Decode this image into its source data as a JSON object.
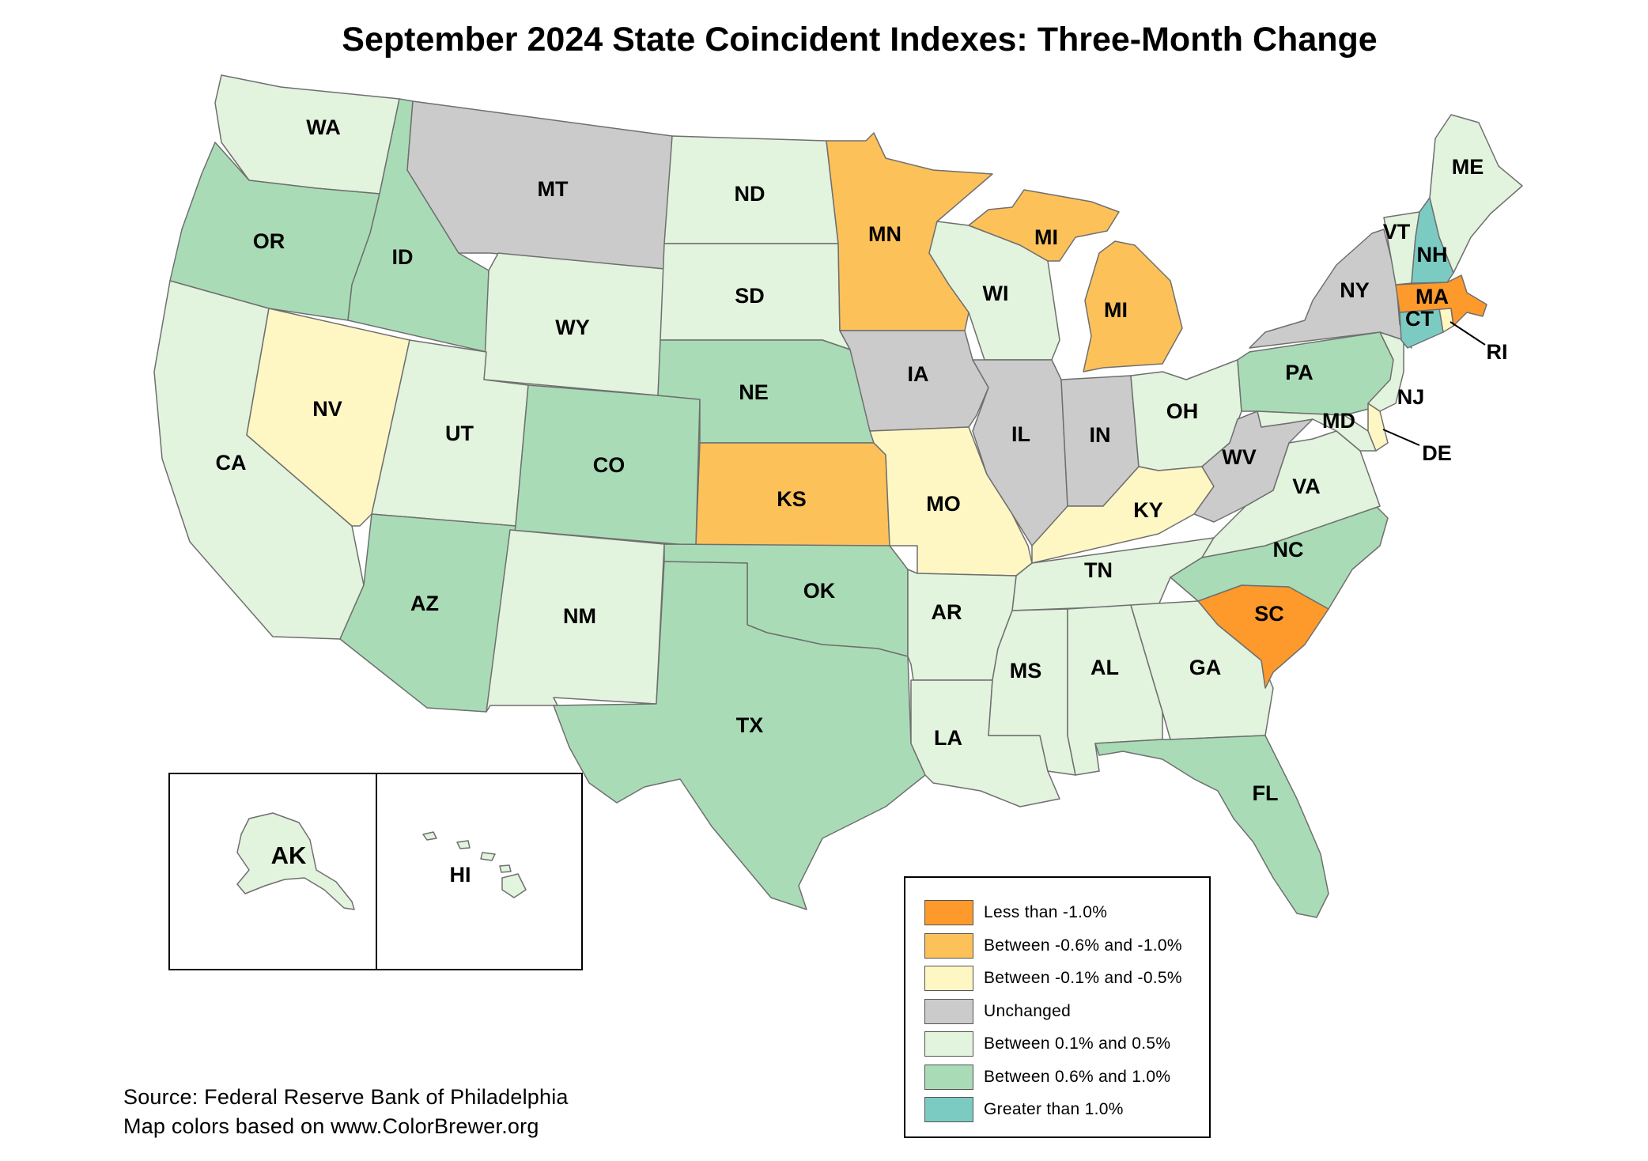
{
  "title": "September 2024 State Coincident Indexes: Three-Month Change",
  "colors": {
    "lt_neg1": "#fd9a2b",
    "neg06_neg1": "#fdc15a",
    "neg01_neg05": "#fef7c4",
    "unchanged": "#cbcbcb",
    "p01_05": "#e2f3de",
    "p06_10": "#a9dcb6",
    "gt1": "#7ccbc2"
  },
  "legend": [
    {
      "key": "lt_neg1",
      "label": "Less than -1.0%"
    },
    {
      "key": "neg06_neg1",
      "label": "Between -0.6% and -1.0%"
    },
    {
      "key": "neg01_neg05",
      "label": "Between -0.1% and -0.5%"
    },
    {
      "key": "unchanged",
      "label": "Unchanged"
    },
    {
      "key": "p01_05",
      "label": "Between 0.1% and 0.5%"
    },
    {
      "key": "p06_10",
      "label": "Between 0.6% and 1.0%"
    },
    {
      "key": "gt1",
      "label": "Greater than 1.0%"
    }
  ],
  "states": {
    "WA": {
      "label": "WA",
      "cat": "p01_05"
    },
    "OR": {
      "label": "OR",
      "cat": "p06_10"
    },
    "CA": {
      "label": "CA",
      "cat": "p01_05"
    },
    "ID": {
      "label": "ID",
      "cat": "p06_10"
    },
    "NV": {
      "label": "NV",
      "cat": "neg01_neg05"
    },
    "MT": {
      "label": "MT",
      "cat": "unchanged"
    },
    "WY": {
      "label": "WY",
      "cat": "p01_05"
    },
    "UT": {
      "label": "UT",
      "cat": "p01_05"
    },
    "AZ": {
      "label": "AZ",
      "cat": "p06_10"
    },
    "CO": {
      "label": "CO",
      "cat": "p06_10"
    },
    "NM": {
      "label": "NM",
      "cat": "p01_05"
    },
    "ND": {
      "label": "ND",
      "cat": "p01_05"
    },
    "SD": {
      "label": "SD",
      "cat": "p01_05"
    },
    "NE": {
      "label": "NE",
      "cat": "p06_10"
    },
    "KS": {
      "label": "KS",
      "cat": "neg06_neg1"
    },
    "OK": {
      "label": "OK",
      "cat": "p06_10"
    },
    "TX": {
      "label": "TX",
      "cat": "p06_10"
    },
    "MN": {
      "label": "MN",
      "cat": "neg06_neg1"
    },
    "IA": {
      "label": "IA",
      "cat": "unchanged"
    },
    "MO": {
      "label": "MO",
      "cat": "neg01_neg05"
    },
    "AR": {
      "label": "AR",
      "cat": "p01_05"
    },
    "LA": {
      "label": "LA",
      "cat": "p01_05"
    },
    "WI": {
      "label": "WI",
      "cat": "p01_05"
    },
    "IL": {
      "label": "IL",
      "cat": "unchanged"
    },
    "MI_UP": {
      "label": "MI",
      "cat": "neg06_neg1"
    },
    "MI": {
      "label": "MI",
      "cat": "neg06_neg1"
    },
    "IN": {
      "label": "IN",
      "cat": "unchanged"
    },
    "OH": {
      "label": "OH",
      "cat": "p01_05"
    },
    "KY": {
      "label": "KY",
      "cat": "neg01_neg05"
    },
    "TN": {
      "label": "TN",
      "cat": "p01_05"
    },
    "MS": {
      "label": "MS",
      "cat": "p01_05"
    },
    "AL": {
      "label": "AL",
      "cat": "p01_05"
    },
    "GA": {
      "label": "GA",
      "cat": "p01_05"
    },
    "FL": {
      "label": "FL",
      "cat": "p06_10"
    },
    "SC": {
      "label": "SC",
      "cat": "lt_neg1"
    },
    "NC": {
      "label": "NC",
      "cat": "p06_10"
    },
    "VA": {
      "label": "VA",
      "cat": "p01_05"
    },
    "WV": {
      "label": "WV",
      "cat": "unchanged"
    },
    "MD": {
      "label": "MD",
      "cat": "p01_05"
    },
    "DE": {
      "label": "DE",
      "cat": "neg01_neg05"
    },
    "PA": {
      "label": "PA",
      "cat": "p06_10"
    },
    "NJ": {
      "label": "NJ",
      "cat": "p01_05"
    },
    "NY": {
      "label": "NY",
      "cat": "unchanged"
    },
    "CT": {
      "label": "CT",
      "cat": "gt1"
    },
    "RI": {
      "label": "RI",
      "cat": "neg01_neg05"
    },
    "MA": {
      "label": "MA",
      "cat": "lt_neg1"
    },
    "VT": {
      "label": "VT",
      "cat": "p01_05"
    },
    "NH": {
      "label": "NH",
      "cat": "gt1"
    },
    "ME": {
      "label": "ME",
      "cat": "p01_05"
    },
    "AK": {
      "label": "AK",
      "cat": "p01_05"
    },
    "HI": {
      "label": "HI",
      "cat": "p01_05"
    }
  },
  "source": {
    "line1": "Source: Federal Reserve Bank of Philadelphia",
    "line2": "Map colors based on www.ColorBrewer.org"
  }
}
